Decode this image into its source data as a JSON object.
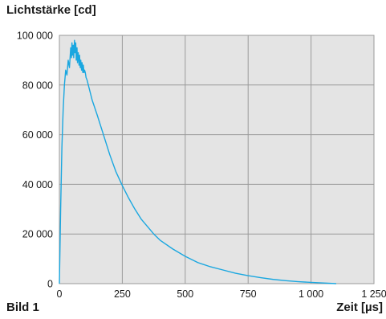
{
  "chart_data": {
    "type": "line",
    "title": "",
    "ylabel": "Lichtstärke [cd]",
    "xlabel": "Zeit [µs]",
    "caption": "Bild 1",
    "xlim": [
      0,
      1250
    ],
    "ylim": [
      0,
      100000
    ],
    "x_ticks": [
      0,
      250,
      500,
      750,
      1000,
      1250
    ],
    "x_tick_labels": [
      "0",
      "250",
      "500",
      "750",
      "1 000",
      "1 250"
    ],
    "y_ticks": [
      0,
      20000,
      40000,
      60000,
      80000,
      100000
    ],
    "y_tick_labels": [
      "0",
      "20 000",
      "40 000",
      "60 000",
      "80 000",
      "100 000"
    ],
    "grid": true,
    "background": "#e4e4e4",
    "series_color": "#1aa7e0",
    "series": [
      {
        "x": [
          0,
          5,
          10,
          15,
          20,
          25,
          30,
          35,
          40,
          45,
          48,
          50,
          52,
          55,
          57,
          60,
          62,
          65,
          67,
          70,
          72,
          75,
          78,
          80,
          83,
          85,
          88,
          90,
          93,
          95,
          98,
          100,
          103,
          106,
          110,
          120,
          130,
          150,
          175,
          200,
          225,
          250,
          275,
          300,
          325,
          350,
          375,
          400,
          450,
          500,
          550,
          600,
          650,
          700,
          750,
          800,
          850,
          900,
          950,
          1000,
          1050,
          1100
        ],
        "y": [
          0,
          30000,
          55000,
          70000,
          80000,
          86000,
          84000,
          90000,
          87000,
          95000,
          91000,
          97000,
          92000,
          96000,
          91000,
          98000,
          93000,
          97000,
          90000,
          95000,
          89000,
          93000,
          88000,
          92000,
          87000,
          90000,
          86000,
          89000,
          85000,
          88000,
          85000,
          86000,
          85000,
          83000,
          82000,
          78000,
          74000,
          68000,
          60000,
          52000,
          45000,
          39500,
          34500,
          30000,
          26000,
          23000,
          20000,
          17500,
          14000,
          11000,
          8500,
          6800,
          5500,
          4200,
          3200,
          2400,
          1700,
          1200,
          800,
          500,
          250,
          0
        ]
      }
    ]
  }
}
